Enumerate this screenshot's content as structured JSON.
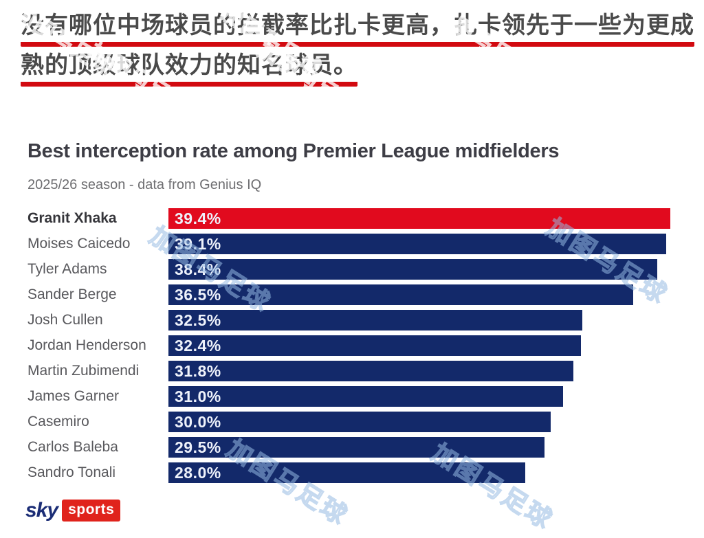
{
  "headline": {
    "line1": "没有哪位中场球员的拦截率比扎卡更高，扎卡领先于一些为更成",
    "line2": "熟的顶级球队效力的知名球员。"
  },
  "chart": {
    "title": "Best interception rate among Premier League midfielders",
    "subtitle": "2025/26 season - data from Genius IQ"
  },
  "chart_data": {
    "type": "bar",
    "orientation": "horizontal",
    "title": "Best interception rate among Premier League midfielders",
    "subtitle": "2025/26 season - data from Genius IQ",
    "categories": [
      "Granit Xhaka",
      "Moises Caicedo",
      "Tyler Adams",
      "Sander Berge",
      "Josh Cullen",
      "Jordan Henderson",
      "Martin Zubimendi",
      "James Garner",
      "Casemiro",
      "Carlos Baleba",
      "Sandro Tonali"
    ],
    "values": [
      39.4,
      39.1,
      38.4,
      36.5,
      32.5,
      32.4,
      31.8,
      31.0,
      30.0,
      29.5,
      28.0
    ],
    "labels": [
      "39.4%",
      "39.1%",
      "38.4%",
      "36.5%",
      "32.5%",
      "32.4%",
      "31.8%",
      "31.0%",
      "30.0%",
      "29.5%",
      "28.0%"
    ],
    "value_suffix": "%",
    "xlim": [
      0,
      39.4
    ],
    "grid": false,
    "legend": false,
    "highlighted_category": "Granit Xhaka",
    "highlight_color": "#e10a1e",
    "bar_color": "#13296a"
  },
  "watermark": {
    "text": "加图马足球"
  },
  "logo": {
    "sky_label": "sky",
    "sports_label": "sports"
  },
  "colors": {
    "headline_underline": "#d20a10",
    "highlight_bar": "#e10a1e",
    "bar": "#13296a",
    "logo_box": "#e0231c",
    "logo_text": "#1b2d76",
    "watermark": "#a8c3e6"
  }
}
